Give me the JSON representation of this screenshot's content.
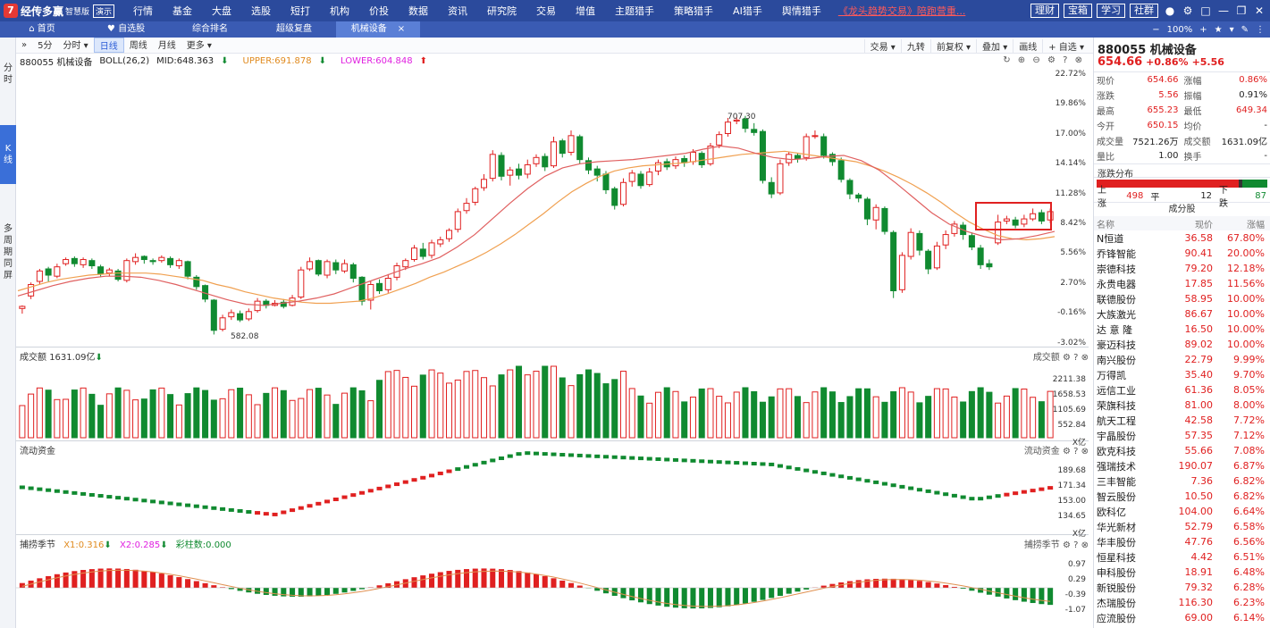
{
  "app": {
    "logo_icon": "7",
    "name": "经传多赢",
    "edition": "智慧版",
    "demo": "演示"
  },
  "menu": [
    "行情",
    "基金",
    "大盘",
    "选股",
    "短打",
    "机构",
    "价投",
    "数据",
    "资讯",
    "研究院",
    "交易",
    "增值",
    "主题猎手",
    "策略猎手",
    "AI猎手",
    "舆情猎手"
  ],
  "promo": "《龙头趋势交易》陪跑营重...",
  "top_buttons": [
    "理财",
    "宝箱",
    "学习",
    "社群"
  ],
  "tabs": [
    {
      "label": "首页",
      "icon": "home-icon"
    },
    {
      "label": "自选股",
      "icon": "heart-icon"
    },
    {
      "label": "综合排名"
    },
    {
      "label": "超级复盘"
    },
    {
      "label": "机械设备",
      "active": true,
      "closable": true
    }
  ],
  "zoom": "100%",
  "left_rail": [
    {
      "label": "分时",
      "active": false
    },
    {
      "label": "K线",
      "active": true
    },
    {
      "label": "多周期同屏",
      "active": false
    }
  ],
  "chart_toolbar": {
    "left": [
      "5分",
      "分时 ▾",
      "日线",
      "周线",
      "月线",
      "更多 ▾"
    ],
    "active": "日线",
    "right": [
      "交易 ▾",
      "九转",
      "前复权 ▾",
      "叠加 ▾",
      "画线",
      "+ 自选 ▾"
    ]
  },
  "indicator": {
    "symbol": "880055 机械设备",
    "name": "BOLL(26,2)",
    "mid": "MID:648.363",
    "upper": "UPPER:691.878",
    "lower": "LOWER:604.848"
  },
  "price_axis": [
    "22.72%",
    "19.86%",
    "17.00%",
    "14.14%",
    "11.28%",
    "8.42%",
    "5.56%",
    "2.70%",
    "-0.16%",
    "-3.02%"
  ],
  "annotations": {
    "high": "707.30",
    "low": "582.08"
  },
  "volume": {
    "label": "成交额",
    "value": "1631.09亿",
    "axis": [
      "2211.38",
      "1658.53",
      "1105.69",
      "552.84",
      "X亿"
    ]
  },
  "flow": {
    "label": "流动资金",
    "axis": [
      "189.68",
      "171.34",
      "153.00",
      "134.65",
      "X亿"
    ]
  },
  "season": {
    "label": "捕捞季节",
    "x1": "X1:0.316",
    "x2": "X2:0.285",
    "bars": "彩柱数:0.000",
    "axis": [
      "0.97",
      "0.29",
      "-0.39",
      "-1.07"
    ]
  },
  "quote": {
    "title": "880055 机械设备",
    "price": "654.66",
    "pct": "+0.86%",
    "chg": "+5.56",
    "rows": [
      {
        "k1": "现价",
        "v1": "654.66",
        "c1": "red",
        "k2": "涨幅",
        "v2": "0.86%",
        "c2": "red"
      },
      {
        "k1": "涨跌",
        "v1": "5.56",
        "c1": "red",
        "k2": "振幅",
        "v2": "0.91%",
        "c2": ""
      },
      {
        "k1": "最高",
        "v1": "655.23",
        "c1": "red",
        "k2": "最低",
        "v2": "649.34",
        "c2": "red"
      },
      {
        "k1": "今开",
        "v1": "650.15",
        "c1": "red",
        "k2": "均价",
        "v2": "-",
        "c2": ""
      },
      {
        "k1": "成交量",
        "v1": "7521.26万",
        "c1": "",
        "k2": "成交额",
        "v2": "1631.09亿",
        "c2": ""
      },
      {
        "k1": "量比",
        "v1": "1.00",
        "c1": "",
        "k2": "换手",
        "v2": "-",
        "c2": ""
      }
    ]
  },
  "breadth": {
    "title": "涨跌分布",
    "up_label": "上涨",
    "up": "498",
    "flat_label": "平",
    "flat": "12",
    "down_label": "下跌",
    "down": "87"
  },
  "components": {
    "title": "成分股",
    "headers": [
      "名称",
      "现价",
      "涨幅"
    ],
    "rows": [
      [
        "N恒道",
        "36.58",
        "67.80%"
      ],
      [
        "乔锋智能",
        "90.41",
        "20.00%"
      ],
      [
        "崇德科技",
        "79.20",
        "12.18%"
      ],
      [
        "永贵电器",
        "17.85",
        "11.56%"
      ],
      [
        "联德股份",
        "58.95",
        "10.00%"
      ],
      [
        "大族激光",
        "86.67",
        "10.00%"
      ],
      [
        "达 意 隆",
        "16.50",
        "10.00%"
      ],
      [
        "豪迈科技",
        "89.02",
        "10.00%"
      ],
      [
        "南兴股份",
        "22.79",
        "9.99%"
      ],
      [
        "万得凯",
        "35.40",
        "9.70%"
      ],
      [
        "远信工业",
        "61.36",
        "8.05%"
      ],
      [
        "荣旗科技",
        "81.00",
        "8.00%"
      ],
      [
        "航天工程",
        "42.58",
        "7.72%"
      ],
      [
        "宇晶股份",
        "57.35",
        "7.12%"
      ],
      [
        "欧克科技",
        "55.66",
        "7.08%"
      ],
      [
        "强瑞技术",
        "190.07",
        "6.87%"
      ],
      [
        "三丰智能",
        "7.36",
        "6.82%"
      ],
      [
        "智云股份",
        "10.50",
        "6.82%"
      ],
      [
        "欧科亿",
        "104.00",
        "6.64%"
      ],
      [
        "华光新材",
        "52.79",
        "6.58%"
      ],
      [
        "华丰股份",
        "47.76",
        "6.56%"
      ],
      [
        "恒星科技",
        "4.42",
        "6.51%"
      ],
      [
        "申科股份",
        "18.91",
        "6.48%"
      ],
      [
        "新锐股份",
        "79.32",
        "6.28%"
      ],
      [
        "杰瑞股份",
        "116.30",
        "6.23%"
      ],
      [
        "应流股份",
        "69.00",
        "6.14%"
      ]
    ]
  },
  "chart_data": {
    "type": "candlestick",
    "y_unit": "percent",
    "ylim": [
      -3.02,
      22.72
    ],
    "candles": [
      [
        0.3,
        0.5,
        0.6,
        -0.2
      ],
      [
        1.5,
        2.6,
        2.8,
        1.2
      ],
      [
        2.9,
        3.9,
        4.1,
        2.6
      ],
      [
        4.1,
        3.5,
        4.3,
        2.9
      ],
      [
        3.4,
        4.3,
        4.6,
        3.2
      ],
      [
        4.6,
        5.0,
        5.2,
        4.4
      ],
      [
        5.1,
        4.6,
        5.3,
        4.3
      ],
      [
        4.5,
        5.0,
        5.2,
        4.2
      ],
      [
        4.9,
        4.4,
        5.1,
        4.1
      ],
      [
        4.3,
        3.6,
        4.5,
        3.3
      ],
      [
        3.7,
        4.0,
        4.2,
        3.4
      ],
      [
        3.9,
        3.1,
        4.1,
        2.9
      ],
      [
        3.0,
        4.9,
        5.1,
        2.8
      ],
      [
        4.8,
        5.2,
        5.6,
        4.5
      ],
      [
        5.3,
        5.0,
        5.4,
        4.6
      ],
      [
        4.9,
        4.8,
        5.1,
        4.5
      ],
      [
        4.9,
        5.2,
        5.4,
        4.7
      ],
      [
        5.1,
        4.5,
        5.3,
        4.2
      ],
      [
        4.4,
        4.9,
        5.1,
        4.1
      ],
      [
        4.8,
        3.4,
        4.9,
        3.1
      ],
      [
        3.3,
        2.4,
        3.5,
        2.1
      ],
      [
        2.5,
        1.2,
        2.6,
        0.9
      ],
      [
        1.1,
        -1.8,
        1.2,
        -2.2
      ],
      [
        -1.7,
        -0.6,
        -0.3,
        -1.9
      ],
      [
        -0.5,
        -0.1,
        0.2,
        -0.8
      ],
      [
        -0.2,
        -0.8,
        0.1,
        -1.0
      ],
      [
        -0.7,
        0.0,
        0.3,
        -0.9
      ],
      [
        0.1,
        1.0,
        1.3,
        -0.1
      ],
      [
        1.0,
        0.6,
        1.2,
        0.3
      ],
      [
        0.6,
        0.8,
        1.1,
        0.5
      ],
      [
        0.9,
        0.5,
        1.2,
        0.3
      ],
      [
        0.6,
        1.3,
        1.6,
        0.5
      ],
      [
        1.4,
        4.0,
        4.3,
        1.2
      ],
      [
        4.1,
        4.8,
        5.2,
        3.9
      ],
      [
        4.9,
        3.6,
        5.0,
        3.4
      ],
      [
        3.5,
        4.8,
        5.0,
        3.2
      ],
      [
        4.7,
        4.0,
        5.0,
        3.6
      ],
      [
        3.9,
        4.6,
        5.0,
        3.7
      ],
      [
        4.5,
        3.2,
        4.7,
        2.8
      ],
      [
        3.3,
        1.0,
        3.4,
        0.6
      ],
      [
        1.1,
        2.6,
        2.9,
        0.2
      ],
      [
        2.7,
        2.0,
        3.1,
        1.7
      ],
      [
        2.1,
        3.2,
        3.6,
        1.8
      ],
      [
        3.3,
        4.4,
        4.7,
        3.0
      ],
      [
        4.3,
        4.9,
        5.1,
        4.0
      ],
      [
        5.0,
        6.1,
        6.4,
        4.8
      ],
      [
        6.0,
        5.3,
        6.6,
        5.0
      ],
      [
        5.4,
        6.6,
        6.9,
        5.1
      ],
      [
        6.5,
        6.9,
        7.2,
        6.2
      ],
      [
        7.0,
        7.8,
        8.0,
        6.7
      ],
      [
        7.9,
        9.6,
        9.9,
        7.6
      ],
      [
        9.7,
        10.4,
        10.9,
        9.4
      ],
      [
        10.5,
        11.8,
        12.0,
        10.2
      ],
      [
        11.9,
        12.7,
        13.2,
        11.6
      ],
      [
        12.8,
        15.1,
        15.5,
        12.5
      ],
      [
        15.0,
        13.0,
        15.3,
        12.6
      ],
      [
        13.1,
        13.6,
        13.9,
        12.1
      ],
      [
        13.7,
        13.1,
        14.2,
        12.7
      ],
      [
        13.2,
        14.1,
        14.6,
        12.8
      ],
      [
        14.2,
        14.8,
        15.1,
        13.9
      ],
      [
        14.9,
        13.9,
        15.2,
        13.5
      ],
      [
        14.0,
        16.3,
        16.8,
        13.8
      ],
      [
        16.4,
        15.2,
        16.6,
        14.8
      ],
      [
        15.3,
        16.9,
        17.4,
        15.0
      ],
      [
        16.8,
        14.6,
        17.0,
        14.2
      ],
      [
        14.5,
        13.6,
        14.8,
        13.2
      ],
      [
        13.7,
        13.1,
        14.0,
        12.5
      ],
      [
        13.2,
        11.7,
        13.5,
        11.3
      ],
      [
        11.8,
        10.2,
        12.0,
        9.8
      ],
      [
        10.3,
        12.4,
        12.8,
        10.1
      ],
      [
        12.5,
        13.3,
        13.6,
        12.0
      ],
      [
        13.2,
        12.1,
        13.5,
        11.8
      ],
      [
        12.2,
        13.4,
        13.8,
        12.0
      ],
      [
        13.5,
        14.3,
        14.6,
        13.1
      ],
      [
        14.4,
        13.9,
        14.7,
        13.6
      ],
      [
        14.0,
        14.6,
        14.9,
        13.7
      ],
      [
        14.7,
        14.3,
        15.0,
        13.9
      ],
      [
        14.4,
        15.3,
        15.6,
        14.1
      ],
      [
        15.2,
        14.1,
        15.4,
        13.8
      ],
      [
        14.2,
        15.9,
        16.2,
        14.0
      ],
      [
        16.0,
        17.0,
        17.3,
        15.7
      ],
      [
        17.1,
        18.2,
        18.6,
        16.8
      ],
      [
        18.3,
        18.4,
        18.7,
        18.0
      ],
      [
        18.5,
        17.6,
        18.8,
        17.2
      ],
      [
        17.5,
        17.2,
        18.1,
        16.9
      ],
      [
        17.3,
        12.6,
        17.5,
        12.3
      ],
      [
        12.4,
        11.3,
        12.9,
        10.9
      ],
      [
        11.4,
        14.2,
        14.6,
        11.2
      ],
      [
        14.3,
        15.1,
        15.3,
        14.0
      ],
      [
        15.0,
        14.7,
        15.2,
        14.3
      ],
      [
        14.8,
        16.8,
        17.1,
        14.5
      ],
      [
        16.9,
        16.9,
        17.4,
        16.6
      ],
      [
        16.8,
        15.0,
        17.1,
        14.7
      ],
      [
        15.1,
        14.4,
        15.3,
        14.0
      ],
      [
        14.5,
        12.7,
        14.8,
        12.4
      ],
      [
        12.6,
        11.3,
        12.8,
        10.8
      ],
      [
        11.2,
        10.9,
        11.4,
        10.5
      ],
      [
        10.8,
        8.9,
        11.0,
        8.3
      ],
      [
        8.8,
        10.0,
        10.3,
        7.9
      ],
      [
        9.9,
        7.7,
        10.1,
        7.4
      ],
      [
        7.6,
        2.0,
        7.8,
        1.3
      ],
      [
        2.1,
        5.4,
        5.7,
        1.8
      ],
      [
        5.3,
        7.6,
        8.0,
        5.0
      ],
      [
        7.5,
        5.9,
        7.8,
        5.4
      ],
      [
        5.8,
        4.1,
        6.0,
        3.6
      ],
      [
        4.2,
        6.3,
        6.7,
        4.0
      ],
      [
        6.4,
        7.4,
        7.8,
        6.0
      ],
      [
        7.5,
        8.4,
        8.7,
        7.2
      ],
      [
        8.3,
        7.4,
        8.6,
        6.9
      ],
      [
        7.3,
        6.2,
        7.6,
        5.9
      ],
      [
        6.1,
        4.5,
        6.4,
        4.1
      ],
      [
        4.6,
        4.3,
        5.0,
        4.0
      ],
      [
        6.6,
        8.6,
        9.3,
        6.4
      ],
      [
        8.7,
        8.9,
        9.2,
        8.4
      ],
      [
        8.8,
        8.3,
        9.1,
        8.0
      ],
      [
        8.4,
        8.9,
        9.3,
        8.1
      ],
      [
        8.9,
        9.4,
        9.9,
        8.7
      ],
      [
        9.5,
        8.7,
        9.8,
        8.4
      ],
      [
        8.8,
        9.6,
        9.9,
        8.5
      ]
    ],
    "mid_series": [
      2.0,
      2.4,
      2.8,
      3.1,
      3.3,
      3.5,
      3.6,
      3.7,
      3.7,
      3.7,
      3.6,
      3.4,
      3.2,
      3.0,
      2.6,
      2.3,
      1.9,
      1.6,
      1.3,
      1.1,
      0.9,
      0.8,
      0.8,
      0.9,
      1.0,
      1.3,
      1.7,
      2.2,
      2.7,
      3.3,
      3.8,
      4.4,
      5.0,
      5.7,
      6.5,
      7.4,
      8.4,
      9.4,
      10.5,
      11.5,
      12.3,
      13.0,
      13.5,
      13.8,
      14.0,
      14.1,
      14.2,
      14.3,
      14.5,
      14.7,
      14.9,
      15.1,
      15.2,
      15.3,
      15.4,
      15.2,
      15.0,
      14.8,
      14.6,
      14.4,
      14.0,
      13.5,
      12.9,
      12.2,
      11.4,
      10.5,
      9.5,
      8.6,
      7.9,
      7.3,
      7.0,
      6.9,
      7.0,
      7.2
    ],
    "ma_series": [
      1.5,
      2.0,
      2.5,
      2.9,
      3.2,
      3.4,
      3.4,
      3.3,
      3.0,
      2.6,
      2.1,
      1.6,
      1.1,
      0.7,
      0.6,
      0.8,
      1.0,
      1.3,
      1.7,
      2.3,
      2.9,
      3.5,
      4.1,
      4.6,
      5.2,
      6.2,
      7.4,
      8.9,
      10.4,
      11.8,
      13.0,
      13.8,
      14.2,
      14.4,
      14.5,
      14.6,
      14.8,
      15.0,
      15.2,
      15.6,
      15.9,
      15.7,
      15.2,
      14.8,
      14.6,
      14.7,
      14.9,
      15.0,
      14.5,
      13.6,
      12.3,
      10.9,
      9.5,
      8.4,
      7.7,
      7.2,
      6.9,
      7.0,
      7.3,
      7.7
    ]
  }
}
